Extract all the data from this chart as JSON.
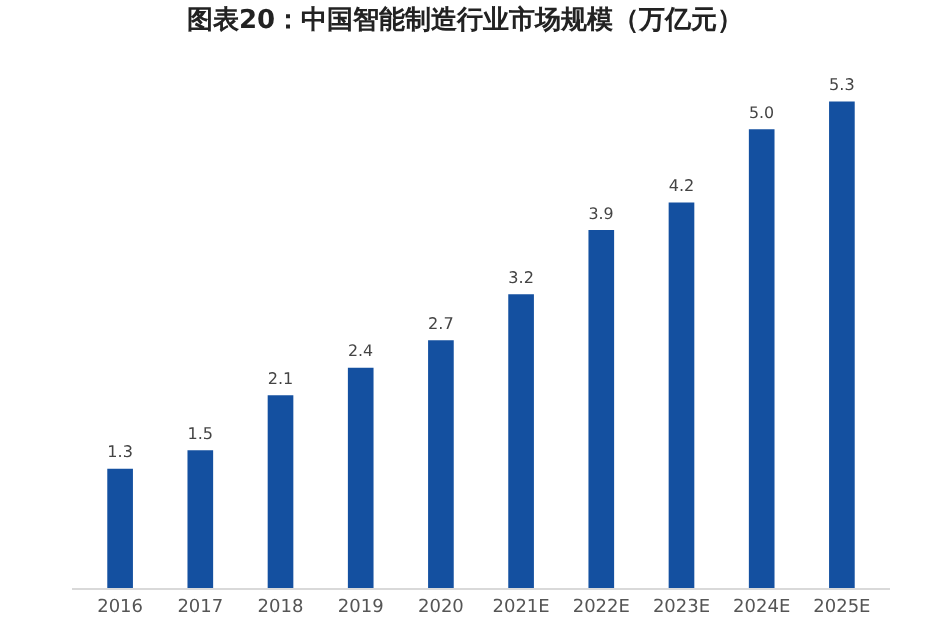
{
  "chart_data": {
    "type": "bar",
    "title": "图表20：中国智能制造行业市场规模（万亿元）",
    "categories": [
      "2016",
      "2017",
      "2018",
      "2019",
      "2020",
      "2021E",
      "2022E",
      "2023E",
      "2024E",
      "2025E"
    ],
    "values": [
      1.3,
      1.5,
      2.1,
      2.4,
      2.7,
      3.2,
      3.9,
      4.2,
      5.0,
      5.3
    ],
    "value_labels": [
      "1.3",
      "1.5",
      "2.1",
      "2.4",
      "2.7",
      "3.2",
      "3.9",
      "4.2",
      "5.0",
      "5.3"
    ],
    "color": "#1450a0"
  }
}
